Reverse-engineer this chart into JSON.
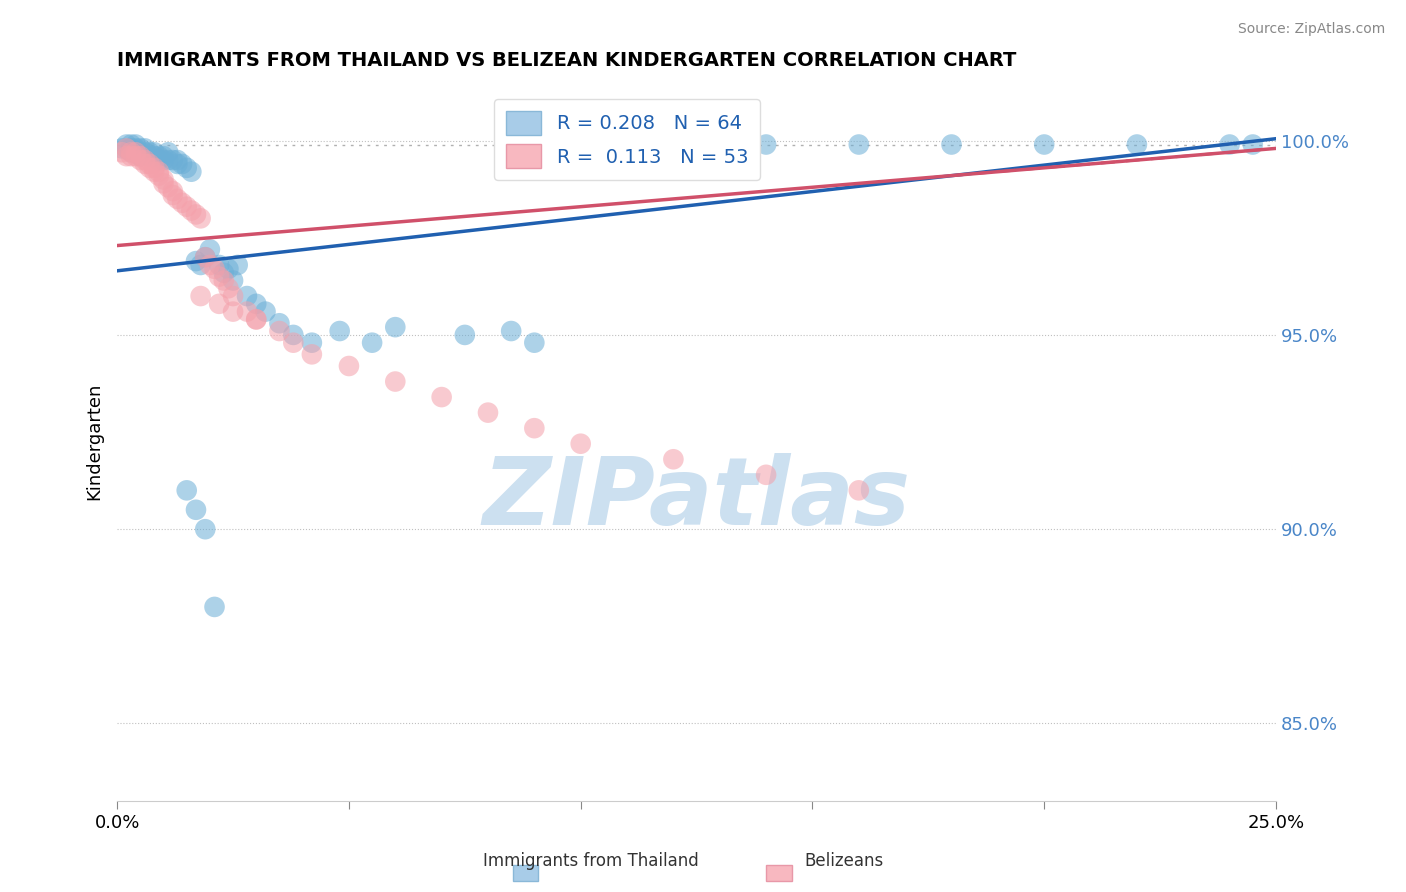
{
  "title": "IMMIGRANTS FROM THAILAND VS BELIZEAN KINDERGARTEN CORRELATION CHART",
  "source_text": "Source: ZipAtlas.com",
  "ylabel": "Kindergarten",
  "xlim": [
    0.0,
    0.25
  ],
  "ylim": [
    0.83,
    1.015
  ],
  "yticks": [
    0.85,
    0.9,
    0.95,
    1.0
  ],
  "legend_text_blue": "R = 0.208   N = 64",
  "legend_text_pink": "R =  0.113   N = 53",
  "blue_color": "#6baed6",
  "pink_color": "#f4a0aa",
  "trend_blue": "#2060b0",
  "trend_pink": "#d0506a",
  "watermark_color": "#cce0f0",
  "blue_scatter_x": [
    0.001,
    0.002,
    0.002,
    0.003,
    0.003,
    0.003,
    0.004,
    0.004,
    0.005,
    0.005,
    0.005,
    0.006,
    0.006,
    0.007,
    0.007,
    0.008,
    0.008,
    0.009,
    0.009,
    0.01,
    0.01,
    0.011,
    0.011,
    0.012,
    0.013,
    0.013,
    0.014,
    0.015,
    0.016,
    0.017,
    0.018,
    0.019,
    0.02,
    0.022,
    0.023,
    0.024,
    0.025,
    0.026,
    0.028,
    0.03,
    0.032,
    0.035,
    0.038,
    0.042,
    0.048,
    0.055,
    0.06,
    0.075,
    0.085,
    0.09,
    0.1,
    0.11,
    0.12,
    0.14,
    0.16,
    0.18,
    0.2,
    0.22,
    0.24,
    0.245,
    0.015,
    0.017,
    0.019,
    0.021
  ],
  "blue_scatter_y": [
    0.998,
    0.999,
    0.998,
    0.999,
    0.998,
    0.997,
    0.999,
    0.998,
    0.998,
    0.997,
    0.996,
    0.998,
    0.997,
    0.997,
    0.996,
    0.997,
    0.996,
    0.996,
    0.995,
    0.996,
    0.995,
    0.995,
    0.997,
    0.995,
    0.995,
    0.994,
    0.994,
    0.993,
    0.992,
    0.969,
    0.968,
    0.97,
    0.972,
    0.968,
    0.966,
    0.967,
    0.964,
    0.968,
    0.96,
    0.958,
    0.956,
    0.953,
    0.95,
    0.948,
    0.951,
    0.948,
    0.952,
    0.95,
    0.951,
    0.948,
    0.999,
    0.998,
    0.999,
    0.999,
    0.999,
    0.999,
    0.999,
    0.999,
    0.999,
    0.999,
    0.91,
    0.905,
    0.9,
    0.88
  ],
  "pink_scatter_x": [
    0.001,
    0.002,
    0.002,
    0.003,
    0.003,
    0.004,
    0.004,
    0.005,
    0.005,
    0.006,
    0.006,
    0.007,
    0.007,
    0.008,
    0.008,
    0.009,
    0.009,
    0.01,
    0.01,
    0.011,
    0.012,
    0.012,
    0.013,
    0.014,
    0.015,
    0.016,
    0.017,
    0.018,
    0.019,
    0.02,
    0.021,
    0.022,
    0.023,
    0.024,
    0.025,
    0.028,
    0.03,
    0.035,
    0.038,
    0.042,
    0.05,
    0.06,
    0.07,
    0.08,
    0.09,
    0.1,
    0.12,
    0.14,
    0.16,
    0.018,
    0.022,
    0.025,
    0.03
  ],
  "pink_scatter_y": [
    0.997,
    0.998,
    0.996,
    0.997,
    0.996,
    0.997,
    0.996,
    0.996,
    0.995,
    0.995,
    0.994,
    0.994,
    0.993,
    0.993,
    0.992,
    0.992,
    0.991,
    0.99,
    0.989,
    0.988,
    0.987,
    0.986,
    0.985,
    0.984,
    0.983,
    0.982,
    0.981,
    0.98,
    0.97,
    0.968,
    0.967,
    0.965,
    0.964,
    0.962,
    0.96,
    0.956,
    0.954,
    0.951,
    0.948,
    0.945,
    0.942,
    0.938,
    0.934,
    0.93,
    0.926,
    0.922,
    0.918,
    0.914,
    0.91,
    0.96,
    0.958,
    0.956,
    0.954
  ]
}
